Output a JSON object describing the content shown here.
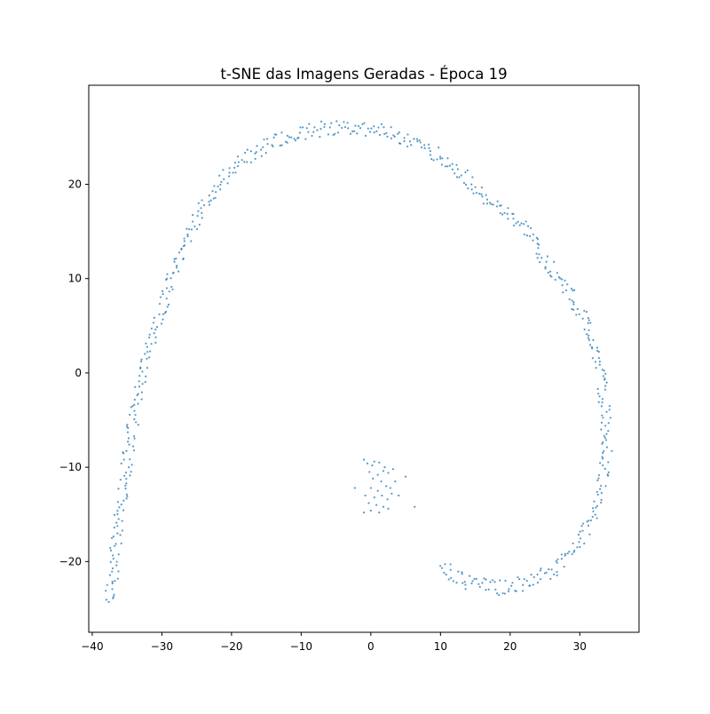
{
  "chart_data": {
    "type": "scatter",
    "title": "t-SNE das Imagens Geradas - Época 19",
    "xlabel": "",
    "ylabel": "",
    "xlim": [
      -40.5,
      38.5
    ],
    "ylim": [
      -27.5,
      30.5
    ],
    "xticks": [
      -40,
      -30,
      -20,
      -10,
      0,
      10,
      20,
      30
    ],
    "xtick_labels": [
      "−40",
      "−30",
      "−20",
      "−10",
      "0",
      "10",
      "20",
      "30"
    ],
    "yticks": [
      -20,
      -10,
      0,
      10,
      20
    ],
    "ytick_labels": [
      "−20",
      "−10",
      "0",
      "10",
      "20"
    ],
    "grid": false,
    "marker_color": "#1f77b4",
    "spiral_path": [
      [
        -37.5,
        -24.5
      ],
      [
        -36.8,
        -19.5
      ],
      [
        -36.0,
        -15.0
      ],
      [
        -35.2,
        -10.5
      ],
      [
        -34.2,
        -5.5
      ],
      [
        -33.0,
        -1.0
      ],
      [
        -31.6,
        3.5
      ],
      [
        -29.5,
        8.0
      ],
      [
        -27.5,
        12.5
      ],
      [
        -25.0,
        16.5
      ],
      [
        -22.0,
        20.0
      ],
      [
        -18.5,
        22.5
      ],
      [
        -14.5,
        24.3
      ],
      [
        -10.5,
        25.4
      ],
      [
        -6.0,
        26.0
      ],
      [
        -2.0,
        26.0
      ],
      [
        2.0,
        25.8
      ],
      [
        6.0,
        24.5
      ],
      [
        10.0,
        23.0
      ],
      [
        14.0,
        20.5
      ],
      [
        18.0,
        17.5
      ],
      [
        22.0,
        15.5
      ],
      [
        25.0,
        12.0
      ],
      [
        28.0,
        9.0
      ],
      [
        30.5,
        6.0
      ],
      [
        32.5,
        2.0
      ],
      [
        33.5,
        -3.0
      ],
      [
        34.0,
        -7.0
      ],
      [
        33.5,
        -11.0
      ],
      [
        32.0,
        -15.0
      ],
      [
        30.0,
        -18.0
      ],
      [
        27.0,
        -20.5
      ],
      [
        23.0,
        -22.2
      ],
      [
        18.0,
        -22.8
      ],
      [
        14.0,
        -22.3
      ],
      [
        12.0,
        -21.5
      ],
      [
        10.0,
        -20.2
      ]
    ],
    "spiral_point_count": 620,
    "cluster_points": [
      [
        -1.0,
        -9.2
      ],
      [
        -0.5,
        -9.6
      ],
      [
        0.5,
        -9.4
      ],
      [
        1.2,
        -9.5
      ],
      [
        2.0,
        -10.0
      ],
      [
        -0.2,
        -10.5
      ],
      [
        1.0,
        -10.8
      ],
      [
        2.5,
        -10.6
      ],
      [
        0.3,
        -11.2
      ],
      [
        1.5,
        -11.5
      ],
      [
        2.2,
        -12.0
      ],
      [
        0.0,
        -12.2
      ],
      [
        1.0,
        -12.5
      ],
      [
        2.8,
        -12.2
      ],
      [
        -2.3,
        -12.2
      ],
      [
        0.5,
        -13.2
      ],
      [
        1.6,
        -13.0
      ],
      [
        2.4,
        -13.4
      ],
      [
        -0.3,
        -13.8
      ],
      [
        0.8,
        -14.0
      ],
      [
        1.8,
        -14.2
      ],
      [
        0.0,
        -14.6
      ],
      [
        1.2,
        -14.8
      ],
      [
        -1.0,
        -14.8
      ],
      [
        2.5,
        -14.4
      ],
      [
        3.5,
        -11.5
      ],
      [
        4.0,
        -13.0
      ],
      [
        5.0,
        -11.0
      ],
      [
        6.3,
        -14.2
      ],
      [
        3.2,
        -10.2
      ],
      [
        0.2,
        -9.8
      ],
      [
        1.8,
        -10.4
      ],
      [
        3.0,
        -12.8
      ],
      [
        -0.8,
        -13.0
      ]
    ]
  }
}
